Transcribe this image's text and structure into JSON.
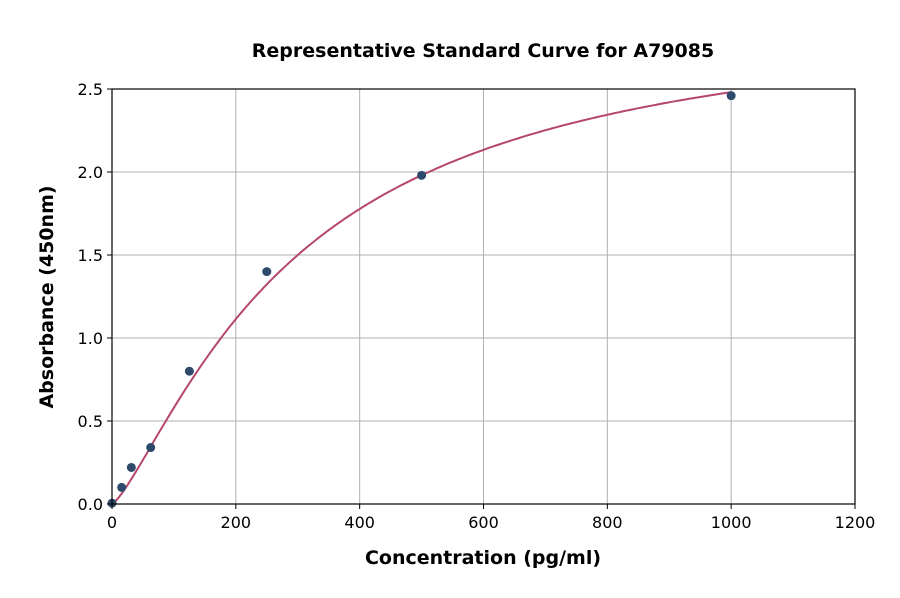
{
  "chart_data": {
    "type": "scatter",
    "title": "Representative Standard Curve for A79085",
    "xlabel": "Concentration (pg/ml)",
    "ylabel": "Absorbance (450nm)",
    "xlim": [
      0,
      1200
    ],
    "ylim": [
      0,
      2.5
    ],
    "xticks": [
      "0",
      "200",
      "400",
      "600",
      "800",
      "1000",
      "1200"
    ],
    "yticks": [
      "0.0",
      "0.5",
      "1.0",
      "1.5",
      "2.0",
      "2.5"
    ],
    "grid": true,
    "points": [
      {
        "x": 0,
        "y": 0.005
      },
      {
        "x": 15.6,
        "y": 0.1
      },
      {
        "x": 31.25,
        "y": 0.22
      },
      {
        "x": 62.5,
        "y": 0.34
      },
      {
        "x": 125,
        "y": 0.8
      },
      {
        "x": 250,
        "y": 1.4
      },
      {
        "x": 500,
        "y": 1.98
      },
      {
        "x": 1000,
        "y": 2.46
      }
    ],
    "point_color": "#2e4a6b",
    "curve_color": "#b5476b"
  }
}
